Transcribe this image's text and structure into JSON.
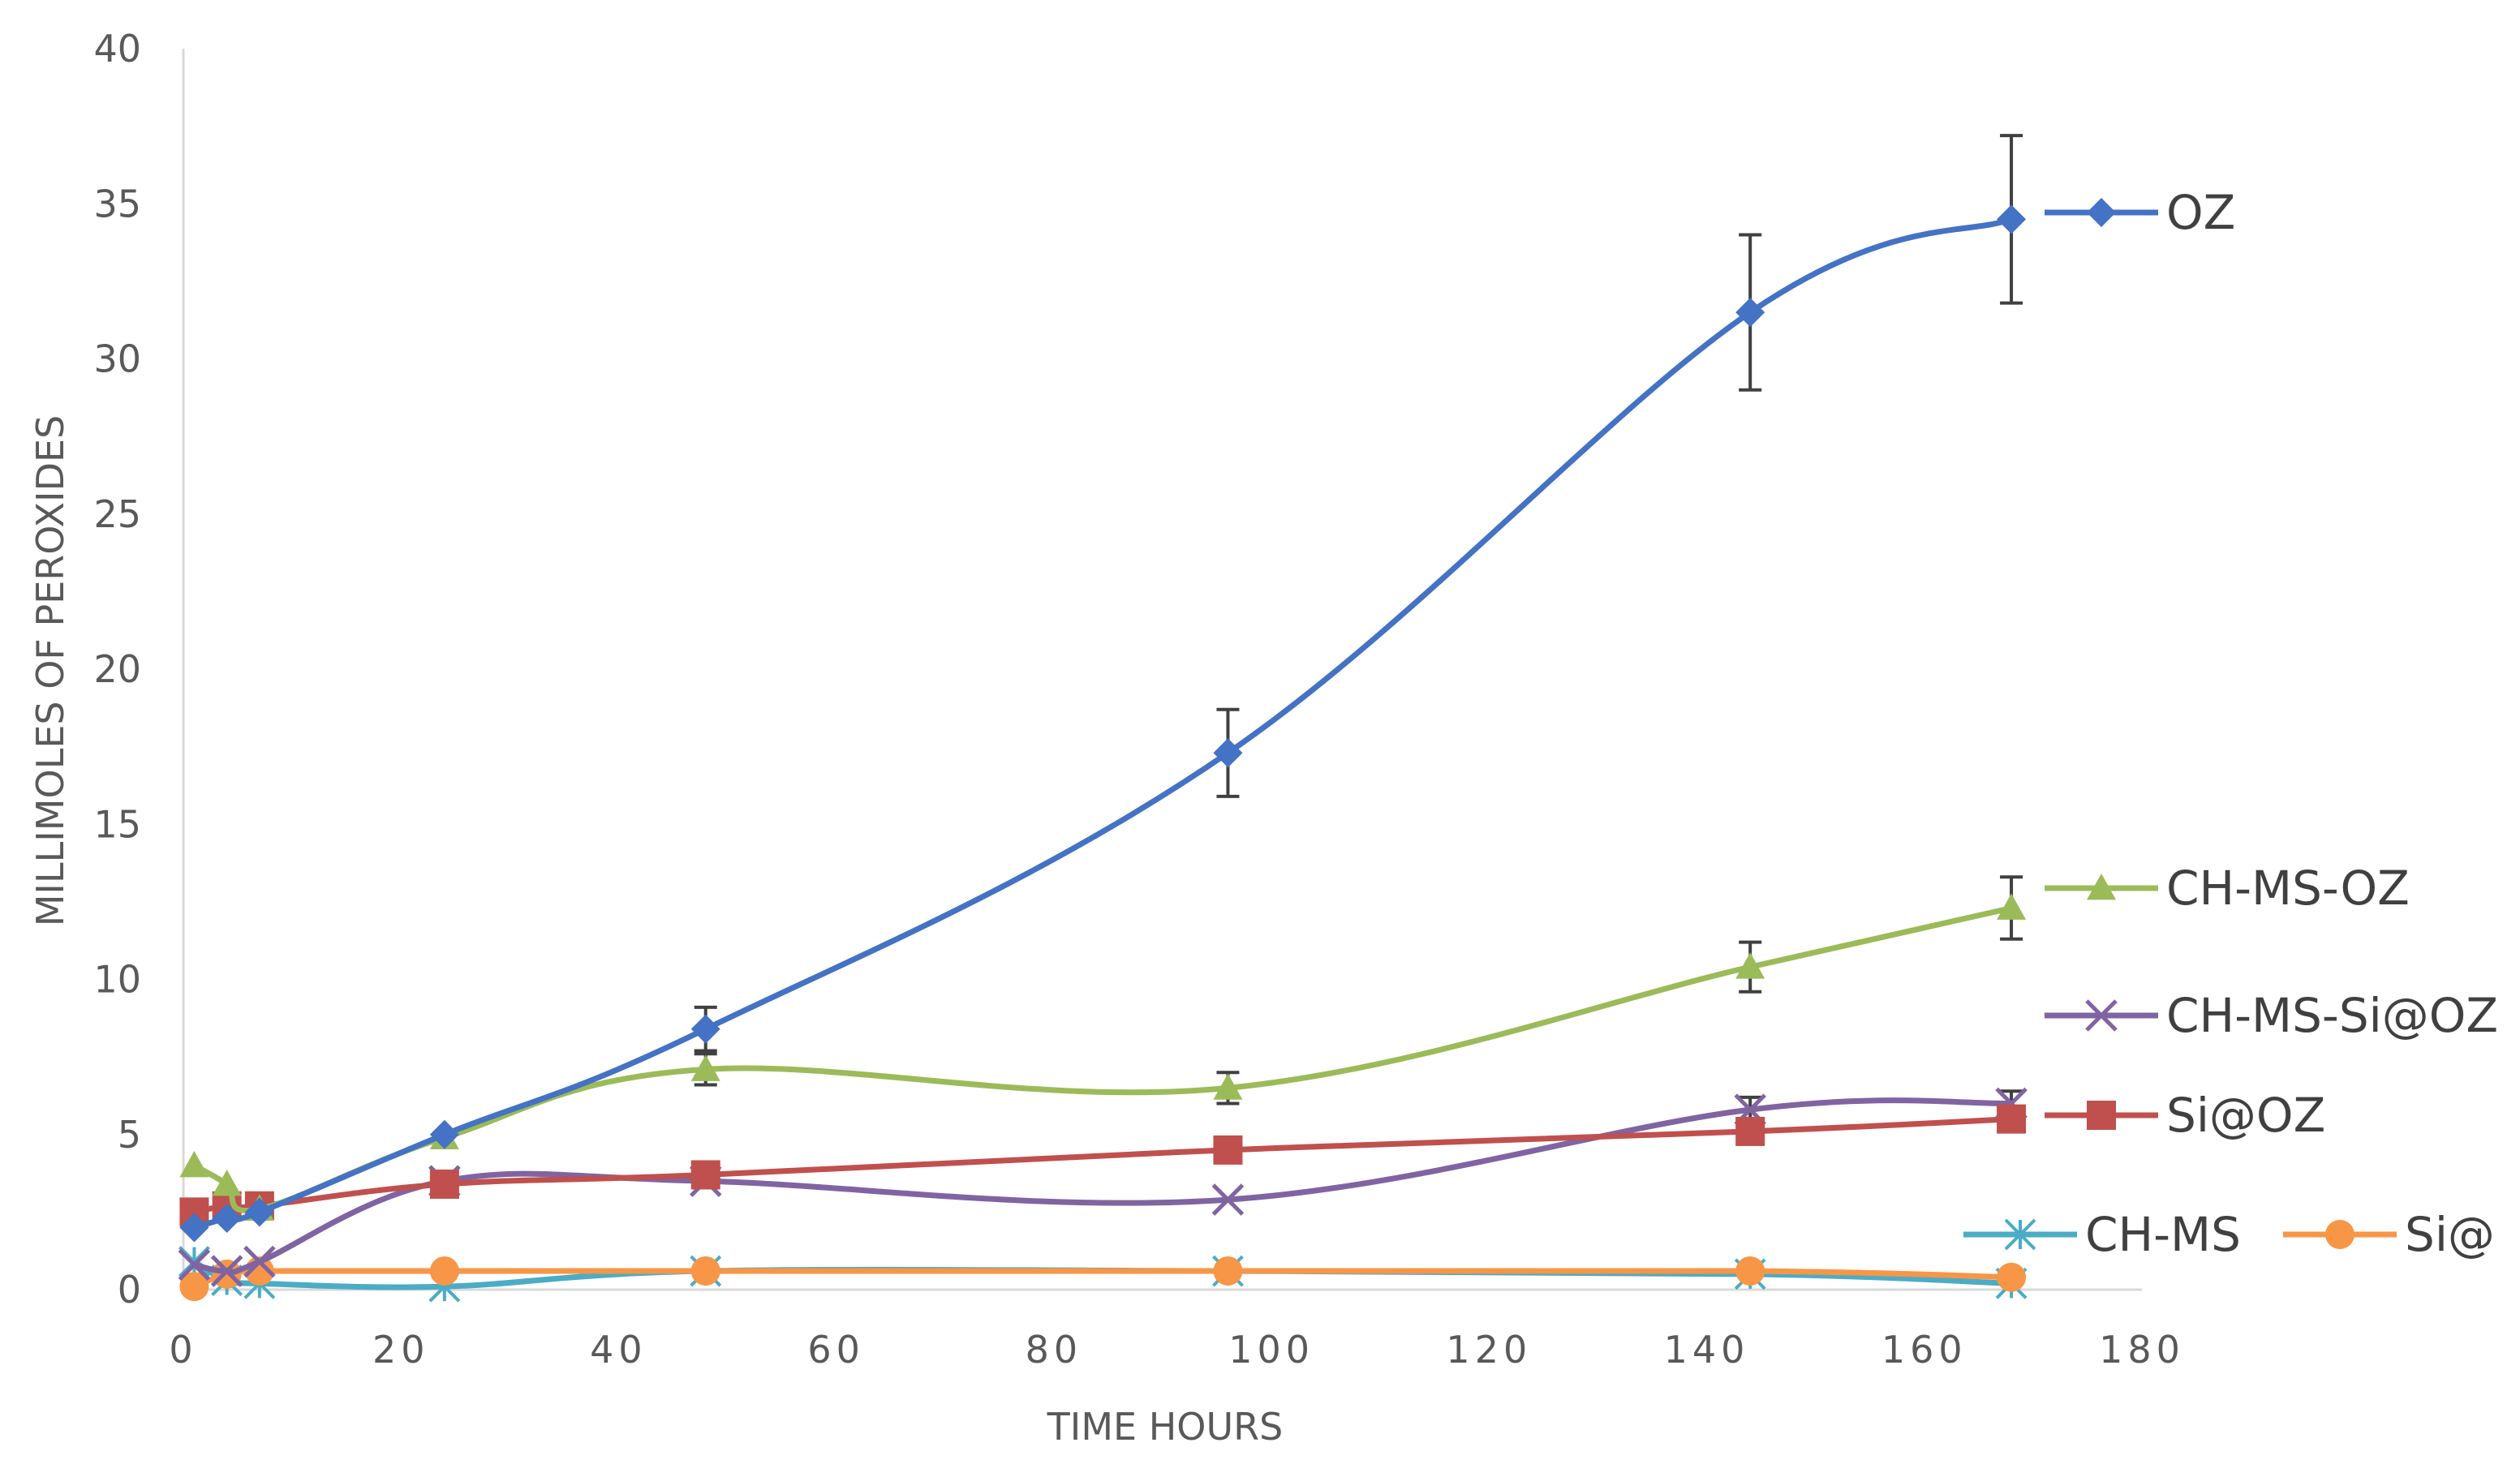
{
  "chart_data": {
    "type": "line",
    "xlabel": "TIME HOURS",
    "ylabel": "MILLIMOLES OF PEROXIDES",
    "xlim": [
      0,
      180
    ],
    "ylim": [
      0,
      40
    ],
    "xticks": [
      0,
      20,
      40,
      60,
      80,
      100,
      120,
      140,
      160,
      180
    ],
    "yticks": [
      0,
      5,
      10,
      15,
      20,
      25,
      30,
      35,
      40
    ],
    "grid": false,
    "legend": "right, labels next to series ends",
    "series": [
      {
        "name": "OZ",
        "color": "#4472C4",
        "marker": "diamond",
        "x": [
          1,
          4,
          7,
          24,
          48,
          96,
          144,
          168
        ],
        "y": [
          2.0,
          2.3,
          2.5,
          5.0,
          8.4,
          17.3,
          31.5,
          34.5
        ],
        "error": [
          0,
          0,
          0,
          0,
          0.7,
          1.4,
          2.5,
          2.7
        ]
      },
      {
        "name": "CH-MS-OZ",
        "color": "#9BBB59",
        "marker": "triangle",
        "x": [
          1,
          4,
          7,
          24,
          48,
          96,
          144,
          168
        ],
        "y": [
          4.0,
          3.4,
          2.6,
          4.9,
          7.1,
          6.5,
          10.4,
          12.3
        ],
        "error": [
          0,
          0,
          0,
          0,
          0.5,
          0.5,
          0.8,
          1.0
        ]
      },
      {
        "name": "CH-MS-Si@OZ",
        "color": "#8064A2",
        "marker": "x",
        "x": [
          1,
          4,
          7,
          24,
          48,
          96,
          144,
          168
        ],
        "y": [
          0.8,
          0.6,
          0.9,
          3.5,
          3.5,
          2.9,
          5.8,
          6.0
        ],
        "error": [
          0,
          0,
          0,
          0,
          0,
          0,
          0.4,
          0.4
        ]
      },
      {
        "name": "Si@OZ",
        "color": "#C0504D",
        "marker": "square",
        "x": [
          1,
          4,
          7,
          24,
          48,
          96,
          144,
          168
        ],
        "y": [
          2.5,
          2.7,
          2.7,
          3.4,
          3.7,
          4.5,
          5.1,
          5.5
        ],
        "error": [
          0,
          0,
          0,
          0,
          0,
          0,
          0,
          0
        ]
      },
      {
        "name": "CH-MS",
        "color": "#4BACC6",
        "marker": "asterisk",
        "x": [
          1,
          4,
          7,
          24,
          48,
          96,
          144,
          168
        ],
        "y": [
          0.9,
          0.3,
          0.2,
          0.1,
          0.6,
          0.6,
          0.5,
          0.2
        ],
        "error": [
          0,
          0,
          0,
          0,
          0,
          0,
          0,
          0
        ]
      },
      {
        "name": "Si@",
        "color": "#F79646",
        "marker": "circle",
        "x": [
          1,
          4,
          7,
          24,
          48,
          96,
          144,
          168
        ],
        "y": [
          0.1,
          0.5,
          0.6,
          0.6,
          0.6,
          0.6,
          0.6,
          0.4
        ],
        "error": [
          0,
          0,
          0,
          0,
          0,
          0,
          0,
          0
        ]
      }
    ]
  }
}
